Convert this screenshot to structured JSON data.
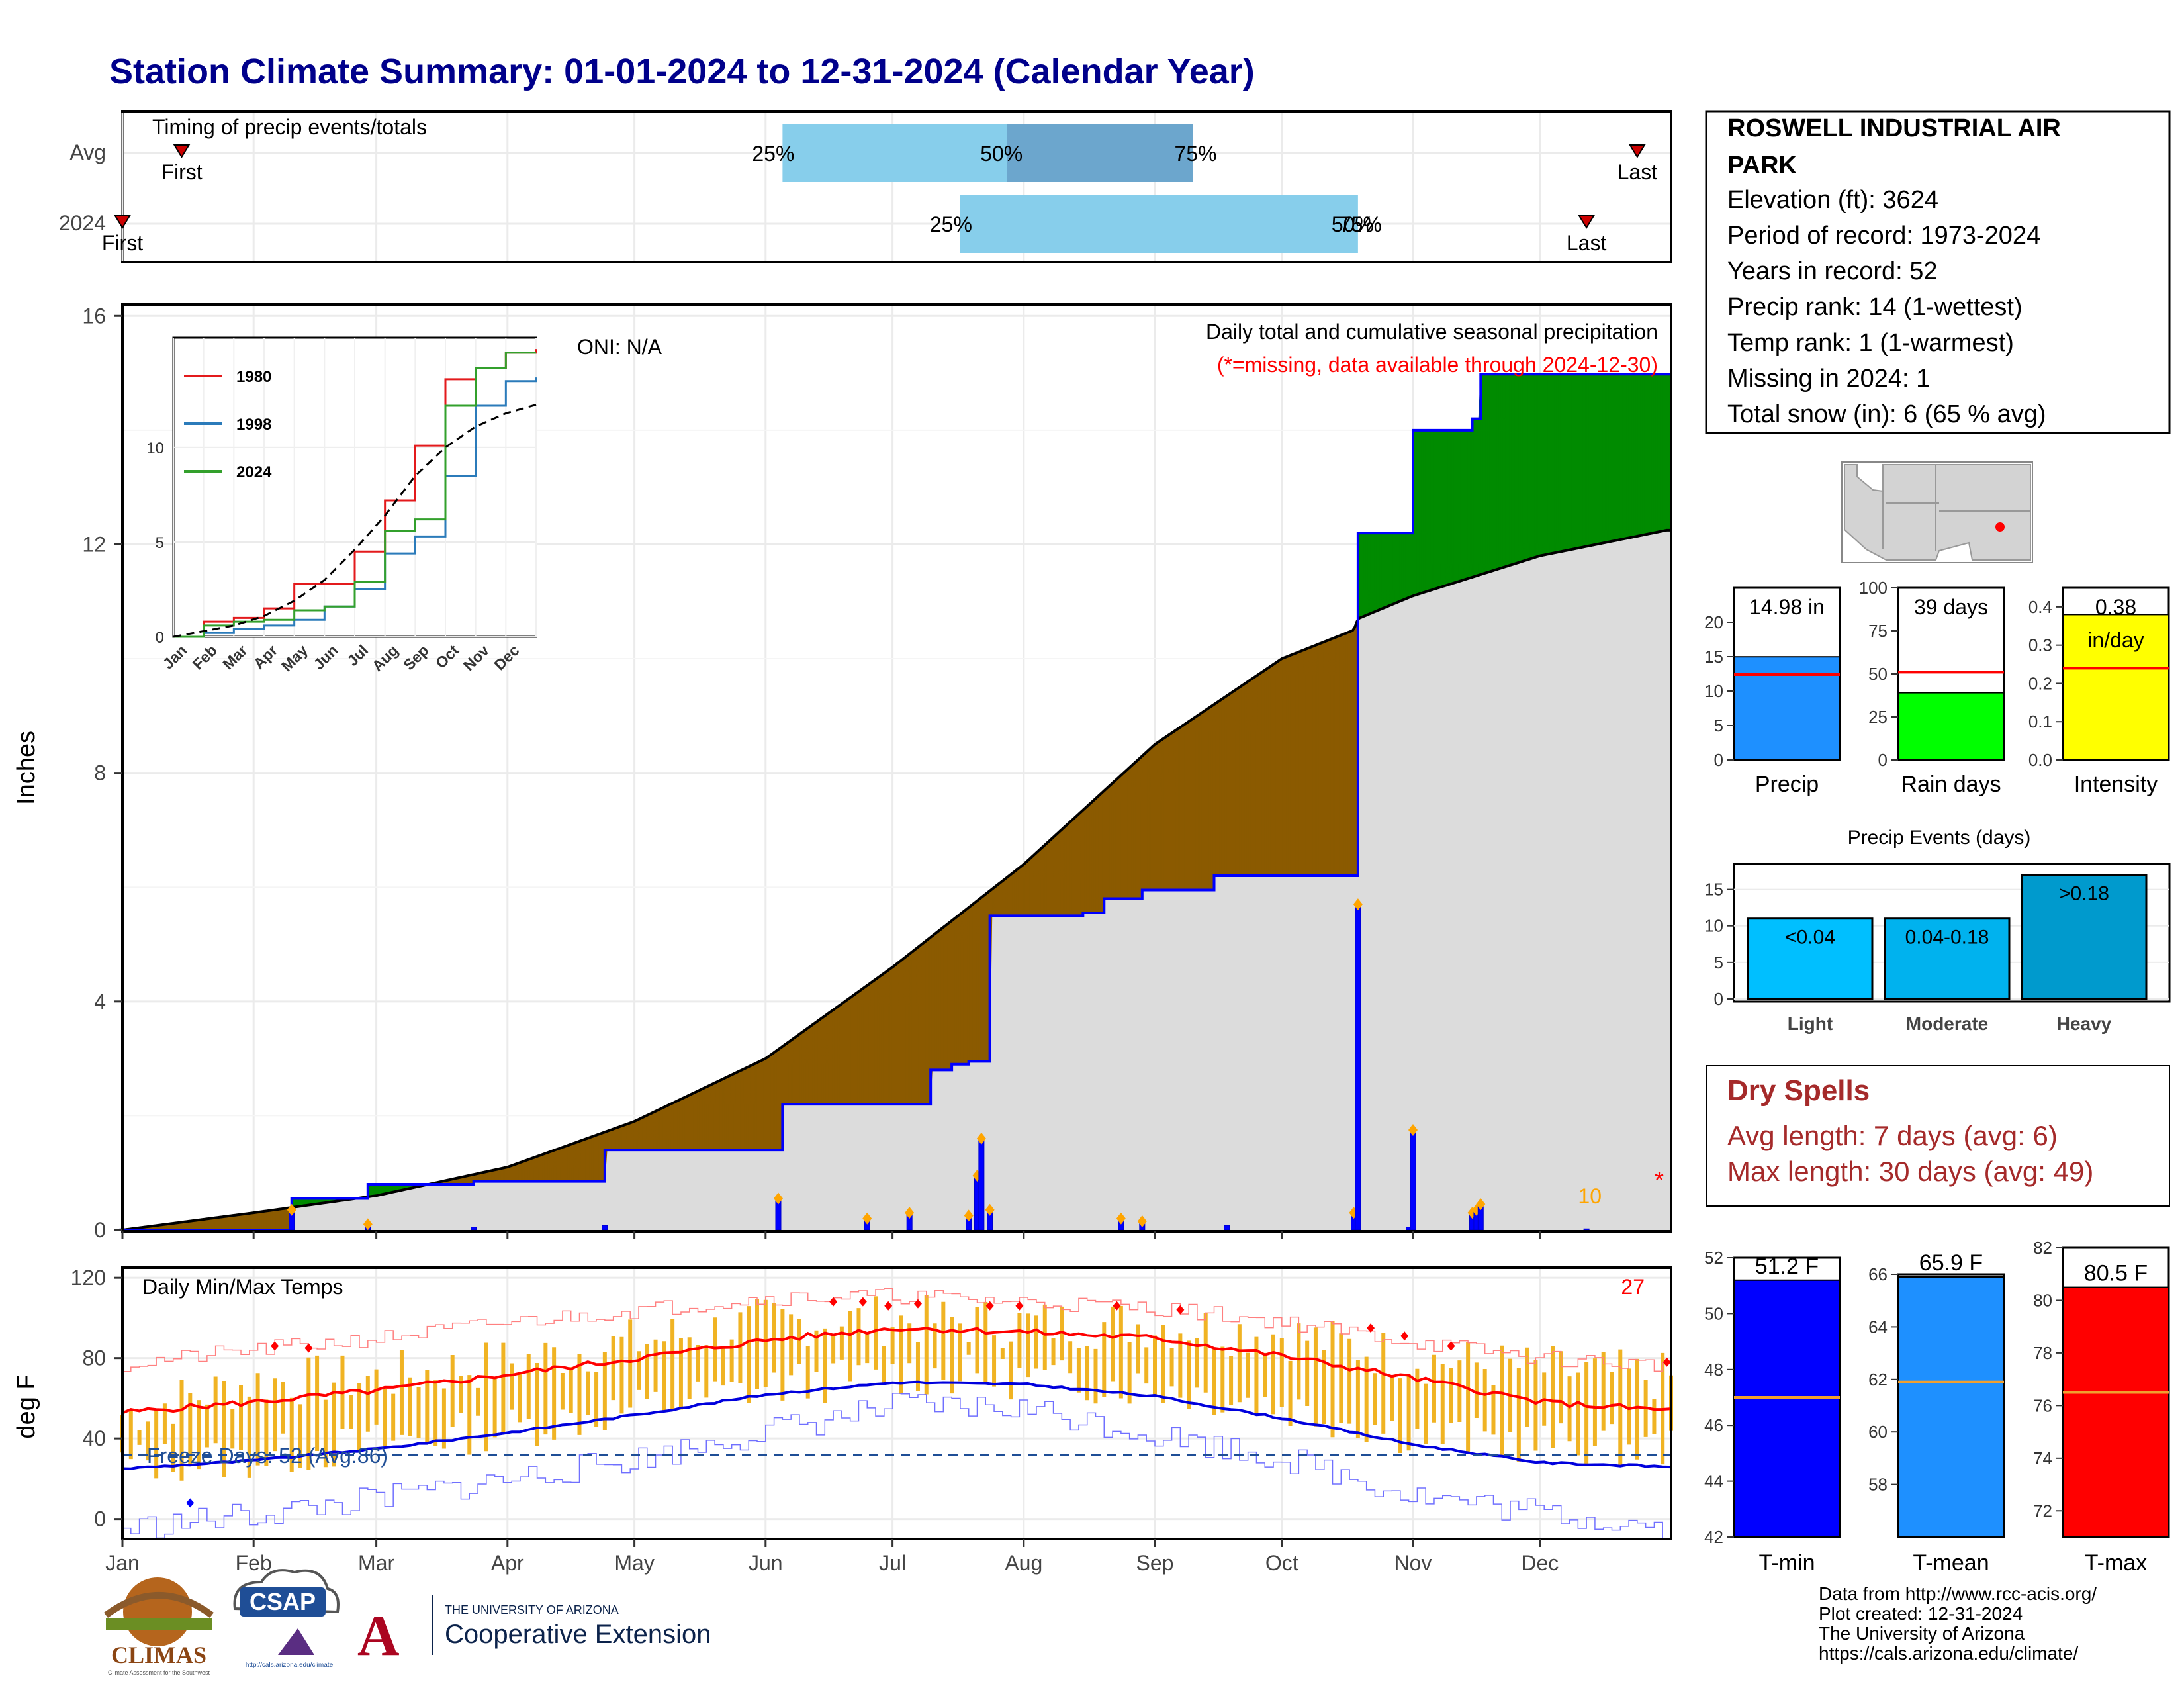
{
  "title": "Station Climate Summary: 01-01-2024 to 12-31-2024 (Calendar Year)",
  "timing": {
    "label": "Timing of precip events/totals",
    "rows": [
      "Avg",
      "2024"
    ],
    "avg": {
      "first": "01-15",
      "p25": "06-05",
      "p50": "07-28",
      "p75": "09-10",
      "last": "12-24"
    },
    "y2024": {
      "first": "01-01",
      "p25": "07-17",
      "p50": "10-19",
      "p75": "10-19",
      "last": "12-12"
    },
    "first_label": "First",
    "last_label": "Last",
    "pct_labels": [
      "25%",
      "50%",
      "75%"
    ]
  },
  "station": {
    "name_line1": "ROSWELL INDUSTRIAL AIR",
    "name_line2": "PARK",
    "lines": [
      "Elevation (ft): 3624",
      "Period of record: 1973-2024",
      "Years in record: 52",
      "Precip rank: 14 (1-wettest)",
      "Temp rank: 1 (1-warmest)",
      "Missing in 2024: 1",
      "Total snow (in): 6 (65 % avg)"
    ]
  },
  "precip_panel": {
    "title": "Daily total and cumulative seasonal precipitation",
    "missing_note": "(*=missing, data available through 2024-12-30)",
    "oni": "ONI: N/A",
    "ylabel": "Inches",
    "count_label": "10",
    "missing_star": "*",
    "yticks": [
      "0",
      "4",
      "8",
      "12",
      "16"
    ]
  },
  "inset": {
    "legend": [
      "1980",
      "1998",
      "2024"
    ],
    "colors": [
      "#e31a1c",
      "#2b7bba",
      "#33a02c"
    ],
    "yticks": [
      "0",
      "5",
      "10"
    ],
    "xticks": [
      "Jan",
      "Feb",
      "Mar",
      "Apr",
      "May",
      "Jun",
      "Jul",
      "Aug",
      "Sep",
      "Oct",
      "Nov",
      "Dec"
    ]
  },
  "temp_panel": {
    "title": "Daily Min/Max Temps",
    "freeze": "Freeze Days: 52 (Avg:86)",
    "record_count": "27",
    "ylabel": "deg F",
    "yticks": [
      "0",
      "40",
      "80",
      "120"
    ]
  },
  "months": [
    "Jan",
    "Feb",
    "Mar",
    "Apr",
    "May",
    "Jun",
    "Jul",
    "Aug",
    "Sep",
    "Oct",
    "Nov",
    "Dec"
  ],
  "bars": {
    "precip": {
      "value_label": "14.98 in",
      "label": "Precip",
      "value": 14.98,
      "avg": 12.4,
      "ymax": 25,
      "color": "#1e90ff",
      "yticks": [
        "0",
        "5",
        "10",
        "15",
        "20"
      ]
    },
    "raindays": {
      "value_label": "39 days",
      "label": "Rain days",
      "value": 39,
      "avg": 51,
      "ymax": 100,
      "color": "#00ff00",
      "yticks": [
        "0",
        "25",
        "50",
        "75",
        "100"
      ]
    },
    "intensity": {
      "value_label": "0.38",
      "unit_label": "in/day",
      "label": "Intensity",
      "value": 0.38,
      "avg": 0.24,
      "ymax": 0.45,
      "color": "#ffff00",
      "yticks": [
        "0.0",
        "0.1",
        "0.2",
        "0.3",
        "0.4"
      ]
    }
  },
  "events": {
    "title": "Precip Events (days)",
    "categories": [
      "Light",
      "Moderate",
      "Heavy"
    ],
    "bar_labels": [
      "<0.04",
      "0.04-0.18",
      ">0.18"
    ],
    "values": [
      11,
      11,
      17
    ],
    "colors": [
      "#00bfff",
      "#00b2ee",
      "#009acd"
    ],
    "yticks": [
      "0",
      "5",
      "10",
      "15"
    ]
  },
  "dry_spells": {
    "title": "Dry Spells",
    "avg_length": "Avg length: 7 days (avg: 6)",
    "max_length": "Max length: 30 days (avg: 49)"
  },
  "temp_bars": {
    "tmin": {
      "label": "T-min",
      "value_label": "51.2 F",
      "value": 51.2,
      "avg": 47,
      "range": [
        42,
        52
      ],
      "color": "#0000ff",
      "yticks": [
        "42",
        "44",
        "46",
        "48",
        "50",
        "52"
      ]
    },
    "tmean": {
      "label": "T-mean",
      "value_label": "65.9 F",
      "value": 65.9,
      "avg": 61.9,
      "range": [
        56,
        66
      ],
      "color": "#1e90ff",
      "yticks": [
        "58",
        "60",
        "62",
        "64",
        "66"
      ]
    },
    "tmax": {
      "label": "T-max",
      "value_label": "80.5 F",
      "value": 80.5,
      "avg": 76.5,
      "range": [
        71,
        82
      ],
      "color": "#ff0000",
      "yticks": [
        "72",
        "74",
        "76",
        "78",
        "80",
        "82"
      ]
    }
  },
  "credits": [
    "Data from http://www.rcc-acis.org/",
    "Plot created: 12-31-2024",
    "The University of Arizona",
    "https://cals.arizona.edu/climate/"
  ],
  "logos": {
    "climas": "CLIMAS",
    "climas_sub": "Climate Assessment for the Southwest",
    "csap": "CSAP",
    "csap_url": "http://cals.arizona.edu/climate",
    "ua_line1": "THE UNIVERSITY OF ARIZONA",
    "ua_line2": "Cooperative Extension"
  },
  "chart_data": {
    "type": "area",
    "title": "Daily total and cumulative seasonal precipitation",
    "ylabel": "Inches",
    "ylim": [
      0,
      16.2
    ],
    "xlim": [
      "2024-01-01",
      "2024-12-31"
    ],
    "cumulative_2024": {
      "dates": [
        "2024-01-01",
        "2024-02-10",
        "2024-02-28",
        "2024-03-24",
        "2024-04-24",
        "2024-05-31",
        "2024-06-05",
        "2024-07-05",
        "2024-07-10",
        "2024-07-15",
        "2024-07-19",
        "2024-07-24",
        "2024-08-15",
        "2024-08-20",
        "2024-08-29",
        "2024-09-15",
        "2024-10-18",
        "2024-10-19",
        "2024-10-31",
        "2024-11-01",
        "2024-11-15",
        "2024-11-17",
        "2024-12-31"
      ],
      "values": [
        0,
        0.55,
        0.8,
        0.85,
        1.4,
        1.4,
        2.2,
        2.2,
        2.8,
        2.9,
        2.95,
        5.5,
        5.55,
        5.8,
        5.95,
        6.2,
        6.2,
        12.2,
        12.2,
        14.0,
        14.2,
        14.98,
        14.98
      ]
    },
    "average_cumulative": {
      "dates": [
        "2024-01-01",
        "2024-02-01",
        "2024-03-01",
        "2024-04-01",
        "2024-05-01",
        "2024-06-01",
        "2024-07-01",
        "2024-08-01",
        "2024-09-01",
        "2024-10-01",
        "2024-10-18",
        "2024-10-19",
        "2024-11-01",
        "2024-12-01",
        "2024-12-31"
      ],
      "values": [
        0,
        0.3,
        0.6,
        1.1,
        1.9,
        3.0,
        4.6,
        6.4,
        8.5,
        10.0,
        10.5,
        10.7,
        11.1,
        11.8,
        12.25
      ]
    },
    "daily_precip": {
      "dates": [
        "2024-01-01",
        "2024-02-10",
        "2024-02-28",
        "2024-03-24",
        "2024-04-24",
        "2024-06-04",
        "2024-06-25",
        "2024-07-05",
        "2024-07-19",
        "2024-07-21",
        "2024-07-22",
        "2024-07-24",
        "2024-08-24",
        "2024-08-29",
        "2024-09-18",
        "2024-10-18",
        "2024-10-19",
        "2024-10-31",
        "2024-11-01",
        "2024-11-15",
        "2024-11-16",
        "2024-11-17",
        "2024-12-12"
      ],
      "values": [
        0.02,
        0.35,
        0.1,
        0.05,
        0.08,
        0.55,
        0.2,
        0.3,
        0.25,
        0.95,
        1.6,
        0.35,
        0.2,
        0.15,
        0.08,
        0.3,
        5.7,
        0.05,
        1.75,
        0.3,
        0.35,
        0.45,
        0.02
      ]
    },
    "inset": {
      "type": "line",
      "series": [
        {
          "name": "1980",
          "months": [
            0,
            1,
            2,
            3,
            4,
            5,
            6,
            7,
            8,
            9,
            10,
            11,
            12
          ],
          "values": [
            0,
            0.8,
            1.0,
            1.5,
            2.8,
            2.8,
            4.5,
            7.2,
            10.1,
            13.6,
            14.2,
            15.0,
            15.2
          ]
        },
        {
          "name": "1998",
          "months": [
            0,
            1,
            2,
            3,
            4,
            5,
            6,
            7,
            8,
            9,
            10,
            11,
            12
          ],
          "values": [
            0,
            0.2,
            0.4,
            0.6,
            0.9,
            1.6,
            2.5,
            4.4,
            5.3,
            8.5,
            12.2,
            13.5,
            13.7
          ]
        },
        {
          "name": "2024",
          "months": [
            0,
            1,
            2,
            3,
            4,
            5,
            6,
            7,
            8,
            9,
            10,
            11,
            12
          ],
          "values": [
            0,
            0.6,
            0.8,
            0.9,
            1.4,
            1.6,
            2.9,
            5.6,
            6.2,
            12.2,
            14.2,
            15.0,
            15.0
          ]
        }
      ],
      "average": {
        "months": [
          0,
          1,
          2,
          3,
          4,
          5,
          6,
          7,
          8,
          9,
          10,
          11,
          12
        ],
        "values": [
          0,
          0.3,
          0.6,
          1.1,
          1.9,
          3.0,
          4.6,
          6.4,
          8.5,
          10.0,
          11.1,
          11.8,
          12.25
        ]
      }
    },
    "temperature": {
      "type": "line",
      "ylim": [
        -10,
        120
      ],
      "freeze_line": 32,
      "avg_max": {
        "months": [
          0,
          1,
          2,
          3,
          4,
          5,
          6,
          7,
          8,
          9,
          10,
          11,
          12
        ],
        "values": [
          53,
          58,
          64,
          72,
          80,
          89,
          95,
          93,
          90,
          81,
          70,
          58,
          54
        ]
      },
      "avg_min": {
        "months": [
          0,
          1,
          2,
          3,
          4,
          5,
          6,
          7,
          8,
          9,
          10,
          11,
          12
        ],
        "values": [
          25,
          29,
          35,
          43,
          52,
          62,
          68,
          67,
          61,
          50,
          37,
          28,
          26
        ]
      },
      "record_max": {
        "months": [
          0,
          1,
          2,
          3,
          4,
          5,
          6,
          7,
          8,
          9,
          10,
          11,
          12
        ],
        "values": [
          77,
          84,
          90,
          98,
          104,
          110,
          111,
          108,
          105,
          98,
          88,
          80,
          76
        ]
      },
      "record_min": {
        "months": [
          0,
          1,
          2,
          3,
          4,
          5,
          6,
          7,
          8,
          9,
          10,
          11,
          12
        ],
        "values": [
          -5,
          2,
          10,
          20,
          30,
          44,
          56,
          55,
          42,
          30,
          12,
          3,
          -4
        ]
      },
      "daily_max": {
        "months": [
          0,
          1,
          2,
          3,
          4,
          5,
          6,
          7,
          8,
          9,
          10,
          11,
          12
        ],
        "values": [
          52,
          68,
          70,
          78,
          88,
          98,
          99,
          97,
          97,
          92,
          80,
          74,
          70
        ]
      },
      "daily_min": {
        "months": [
          0,
          1,
          2,
          3,
          4,
          5,
          6,
          7,
          8,
          9,
          10,
          11,
          12
        ],
        "values": [
          28,
          30,
          38,
          45,
          55,
          66,
          72,
          70,
          66,
          56,
          42,
          38,
          35
        ]
      }
    }
  }
}
